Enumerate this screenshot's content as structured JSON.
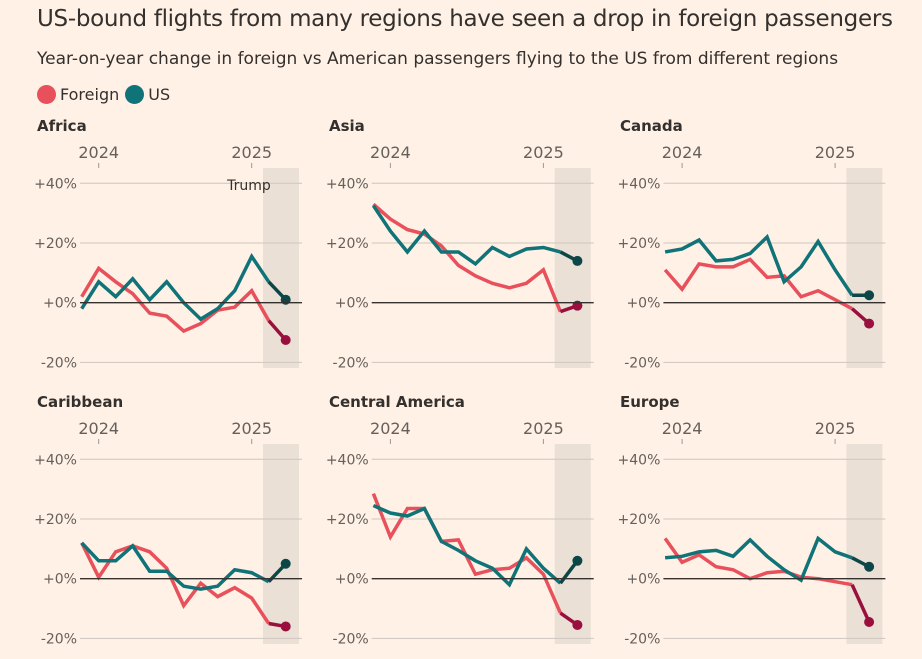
{
  "title": "US-bound flights from many regions have seen a drop in foreign passengers",
  "subtitle": "Year-on-year change in foreign vs American passengers flying to the US from different regions",
  "colors": {
    "foreign": "#e8505b",
    "foreign_dark": "#990f3d",
    "us": "#0f7378",
    "us_dark": "#0d4647",
    "shade": "#ebe0d6",
    "grid": "#cec6bf",
    "zero": "#33302e"
  },
  "chart_data": {
    "type": "line",
    "legend": [
      {
        "name": "Foreign"
      },
      {
        "name": "US"
      }
    ],
    "legend_placement": "top-left",
    "x_tick_labels": [
      "2024",
      "2025"
    ],
    "y_tick_labels": [
      "+40%",
      "+20%",
      "+0%",
      "-20%"
    ],
    "ylim": [
      -20,
      40
    ],
    "grid": true,
    "annotation": "Trump",
    "panels": [
      {
        "title": "Africa",
        "series": [
          {
            "name": "Foreign",
            "values": [
              2,
              11.5,
              7,
              3,
              -3.5,
              -4.5,
              -9.5,
              -7,
              -2.5,
              -1.5,
              4,
              -6,
              -12.5
            ]
          },
          {
            "name": "US",
            "values": [
              -2,
              7,
              2,
              8,
              1,
              7,
              0,
              -5.5,
              -2,
              4,
              15.5,
              7,
              1
            ]
          }
        ]
      },
      {
        "title": "Asia",
        "series": [
          {
            "name": "Foreign",
            "values": [
              33,
              28,
              24.5,
              23,
              19,
              12.5,
              9,
              6.5,
              5,
              6.5,
              11,
              -3,
              -1
            ]
          },
          {
            "name": "US",
            "values": [
              32.5,
              24,
              17,
              24,
              17,
              17,
              13,
              18.5,
              15.5,
              18,
              18.5,
              17,
              14
            ]
          }
        ]
      },
      {
        "title": "Canada",
        "series": [
          {
            "name": "Foreign",
            "values": [
              11,
              4.5,
              13,
              12,
              12,
              14.5,
              8.5,
              9,
              2,
              4,
              1,
              -2,
              -7
            ]
          },
          {
            "name": "US",
            "values": [
              17,
              18,
              21,
              14,
              14.5,
              16.5,
              22,
              7,
              12,
              20.5,
              11,
              2.5,
              2.5
            ]
          }
        ]
      },
      {
        "title": "Caribbean",
        "series": [
          {
            "name": "Foreign",
            "values": [
              12,
              0.5,
              9,
              11,
              9,
              3.5,
              -9,
              -1.5,
              -6,
              -3,
              -6.5,
              -15,
              -16
            ]
          },
          {
            "name": "US",
            "values": [
              12,
              6,
              6,
              11,
              2.5,
              2.5,
              -2.5,
              -3.5,
              -2.5,
              3,
              2,
              -1,
              5
            ]
          }
        ]
      },
      {
        "title": "Central America",
        "series": [
          {
            "name": "Foreign",
            "values": [
              28.5,
              14,
              23.5,
              23.5,
              12.5,
              13,
              1.5,
              3,
              3.5,
              7,
              1.5,
              -11.5,
              -15.5
            ]
          },
          {
            "name": "US",
            "values": [
              24.5,
              22,
              21,
              23.5,
              12.5,
              9.5,
              6,
              3.5,
              -2,
              10,
              3.5,
              -1.5,
              6
            ]
          }
        ]
      },
      {
        "title": "Europe",
        "series": [
          {
            "name": "Foreign",
            "values": [
              13.5,
              5.5,
              8,
              4,
              3,
              0,
              2,
              2.5,
              0.5,
              0,
              -1,
              -2,
              -14.5
            ]
          },
          {
            "name": "US",
            "values": [
              7,
              7.5,
              9,
              9.5,
              7.5,
              13,
              7.5,
              3,
              -0.5,
              13.5,
              9,
              7,
              4
            ]
          }
        ]
      }
    ]
  }
}
